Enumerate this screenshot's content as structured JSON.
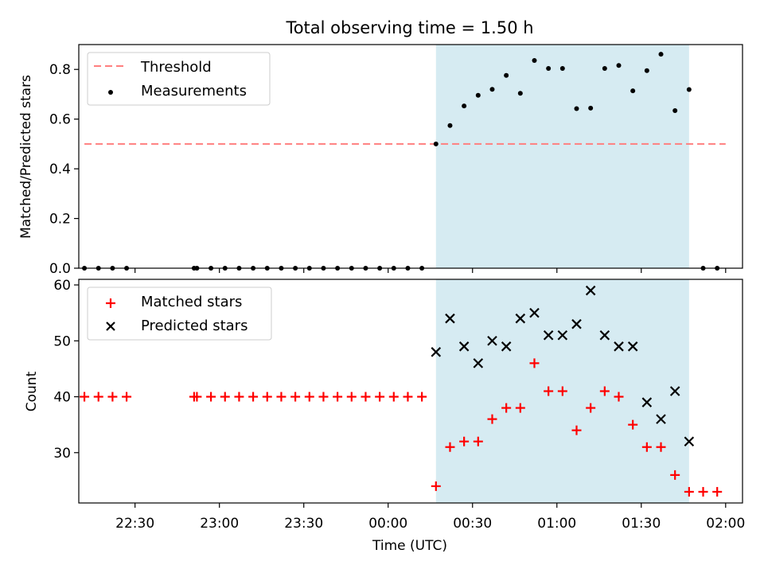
{
  "chart_data": [
    {
      "type": "scatter",
      "title": "Total observing time = 1.50 h",
      "ylabel": "Matched/Predicted stars",
      "ylim": [
        0,
        0.9
      ],
      "yticks": [
        0.0,
        0.2,
        0.4,
        0.6,
        0.8
      ],
      "ytick_labels": [
        "0.0",
        "0.2",
        "0.4",
        "0.6",
        "0.8"
      ],
      "xlim": [
        "22:10",
        "02:06"
      ],
      "shaded_region": [
        "00:17",
        "01:47"
      ],
      "legend_placement": "top-left",
      "threshold": {
        "name": "Threshold",
        "value": 0.5,
        "x_range": [
          "22:12",
          "02:00"
        ],
        "color": "#ff7f7f"
      },
      "series": [
        {
          "name": "Measurements",
          "color": "#000000",
          "x": [
            "22:12",
            "22:17",
            "22:22",
            "22:27",
            "22:51",
            "22:52",
            "22:57",
            "23:02",
            "23:07",
            "23:12",
            "23:17",
            "23:22",
            "23:27",
            "23:32",
            "23:37",
            "23:42",
            "23:47",
            "23:52",
            "23:57",
            "00:02",
            "00:07",
            "00:12",
            "00:17",
            "00:22",
            "00:27",
            "00:32",
            "00:37",
            "00:42",
            "00:47",
            "00:52",
            "00:57",
            "01:02",
            "01:07",
            "01:12",
            "01:17",
            "01:22",
            "01:27",
            "01:32",
            "01:37",
            "01:42",
            "01:47",
            "01:52",
            "01:57"
          ],
          "y": [
            0,
            0,
            0,
            0,
            0,
            0,
            0,
            0,
            0,
            0,
            0,
            0,
            0,
            0,
            0,
            0,
            0,
            0,
            0,
            0,
            0,
            0,
            0.5,
            0.574,
            0.653,
            0.696,
            0.72,
            0.776,
            0.704,
            0.836,
            0.804,
            0.804,
            0.642,
            0.644,
            0.804,
            0.816,
            0.714,
            0.795,
            0.861,
            0.634,
            0.719,
            0,
            0
          ]
        }
      ]
    },
    {
      "type": "scatter",
      "xlabel": "Time (UTC)",
      "ylabel": "Count",
      "ylim": [
        21,
        61
      ],
      "yticks": [
        30,
        40,
        50,
        60
      ],
      "ytick_labels": [
        "30",
        "40",
        "50",
        "60"
      ],
      "xlim": [
        "22:10",
        "02:06"
      ],
      "xticks": [
        "22:30",
        "23:00",
        "23:30",
        "00:00",
        "00:30",
        "01:00",
        "01:30",
        "02:00"
      ],
      "shaded_region": [
        "00:17",
        "01:47"
      ],
      "legend_placement": "top-left",
      "series": [
        {
          "name": "Matched stars",
          "marker": "plus",
          "color": "#ff0000",
          "x": [
            "22:12",
            "22:17",
            "22:22",
            "22:27",
            "22:51",
            "22:52",
            "22:57",
            "23:02",
            "23:07",
            "23:12",
            "23:17",
            "23:22",
            "23:27",
            "23:32",
            "23:37",
            "23:42",
            "23:47",
            "23:52",
            "23:57",
            "00:02",
            "00:07",
            "00:12",
            "00:17",
            "00:22",
            "00:27",
            "00:32",
            "00:37",
            "00:42",
            "00:47",
            "00:52",
            "00:57",
            "01:02",
            "01:07",
            "01:12",
            "01:17",
            "01:22",
            "01:27",
            "01:32",
            "01:37",
            "01:42",
            "01:47",
            "01:52",
            "01:57"
          ],
          "y": [
            40,
            40,
            40,
            40,
            40,
            40,
            40,
            40,
            40,
            40,
            40,
            40,
            40,
            40,
            40,
            40,
            40,
            40,
            40,
            40,
            40,
            40,
            24,
            31,
            32,
            32,
            36,
            38,
            38,
            46,
            41,
            41,
            34,
            38,
            41,
            40,
            35,
            31,
            31,
            26,
            23,
            23,
            23
          ]
        },
        {
          "name": "Predicted stars",
          "marker": "x",
          "color": "#000000",
          "x": [
            "00:17",
            "00:22",
            "00:27",
            "00:32",
            "00:37",
            "00:42",
            "00:47",
            "00:52",
            "00:57",
            "01:02",
            "01:07",
            "01:12",
            "01:17",
            "01:22",
            "01:27",
            "01:32",
            "01:37",
            "01:42",
            "01:47"
          ],
          "y": [
            48,
            54,
            49,
            46,
            50,
            49,
            54,
            55,
            51,
            51,
            53,
            59,
            51,
            49,
            49,
            39,
            36,
            41,
            32
          ]
        }
      ]
    }
  ]
}
